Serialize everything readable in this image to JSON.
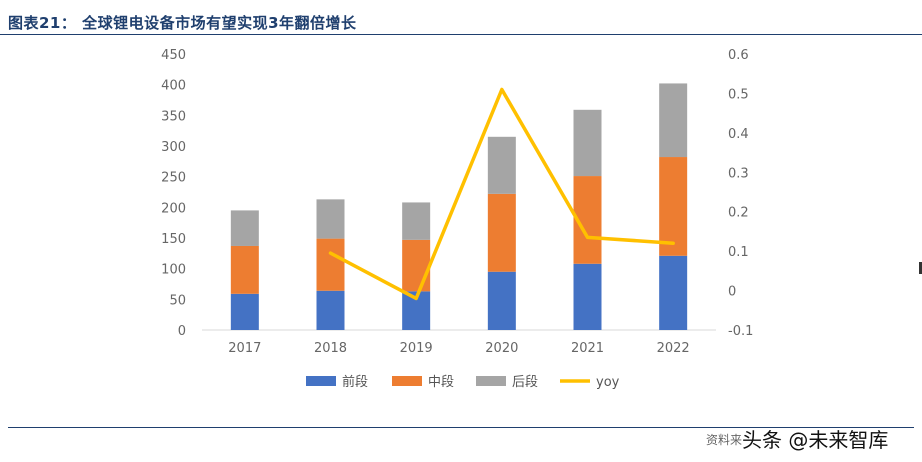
{
  "header": {
    "title": "图表21： 全球锂电设备市场有望实现3年翻倍增长"
  },
  "footer": {
    "source": "资料来",
    "watermark": "头条 @未来智库"
  },
  "colors": {
    "front": "#4472c4",
    "middle": "#ed7d31",
    "back": "#a5a5a5",
    "yoy": "#ffc000",
    "title": "#1f3f6e"
  },
  "chart_data": {
    "type": "bar",
    "stacked": true,
    "categories": [
      "2017",
      "2018",
      "2019",
      "2020",
      "2021",
      "2022"
    ],
    "series": [
      {
        "name": "前段",
        "type": "bar",
        "axis": "left",
        "values": [
          59,
          64,
          63,
          95,
          108,
          121
        ]
      },
      {
        "name": "中段",
        "type": "bar",
        "axis": "left",
        "values": [
          78,
          85,
          84,
          127,
          143,
          161
        ]
      },
      {
        "name": "后段",
        "type": "bar",
        "axis": "left",
        "values": [
          58,
          64,
          61,
          93,
          108,
          120
        ]
      },
      {
        "name": "yoy",
        "type": "line",
        "axis": "right",
        "values": [
          null,
          0.095,
          -0.02,
          0.51,
          0.135,
          0.12
        ]
      }
    ],
    "y_left": {
      "min": 0,
      "max": 450,
      "step": 50,
      "ticks": [
        "0",
        "50",
        "100",
        "150",
        "200",
        "250",
        "300",
        "350",
        "400",
        "450"
      ]
    },
    "y_right": {
      "min": -0.1,
      "max": 0.6,
      "step": 0.1,
      "ticks": [
        "-0.1",
        "0",
        "0.1",
        "0.2",
        "0.3",
        "0.4",
        "0.5",
        "0.6"
      ]
    },
    "grid": false,
    "legend_position": "bottom"
  }
}
